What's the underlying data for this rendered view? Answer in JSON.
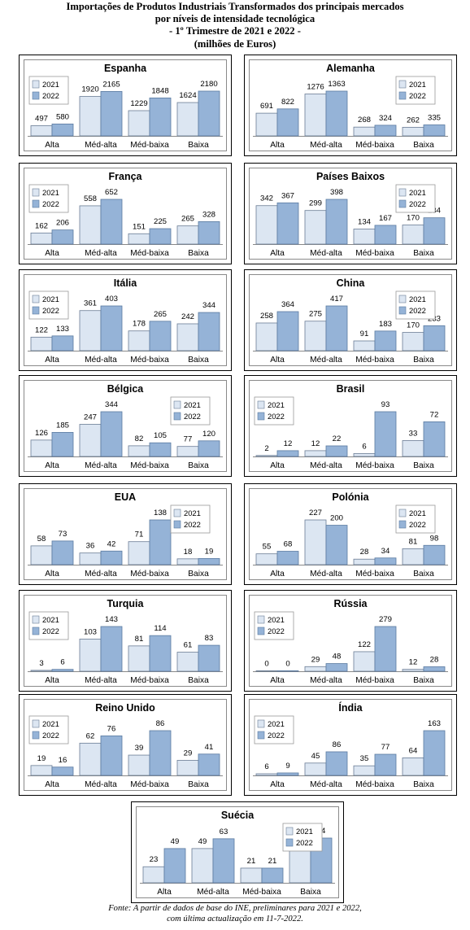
{
  "title": {
    "line1": "Importações de Produtos Industriais Transformados dos principais mercados",
    "line2": "por níveis de intensidade tecnológica",
    "line3": "- 1º Trimestre de 2021 e 2022 -",
    "line4": "(milhões de Euros)"
  },
  "source": {
    "line1": "Fonte: A partir de dados de base do INE, preliminares para 2021 e 2022,",
    "line2": "com última actualização em 11-7-2022."
  },
  "colors": {
    "s2021": "#dce6f2",
    "s2022": "#95b3d7",
    "border2021": "#6b7d95",
    "border2022": "#5a7aa0"
  },
  "chart_data": [
    {
      "type": "bar",
      "title": "Espanha",
      "categories": [
        "Alta",
        "Méd-alta",
        "Méd-baixa",
        "Baixa"
      ],
      "series": [
        {
          "name": "2021",
          "values": [
            497,
            1920,
            1229,
            1624
          ]
        },
        {
          "name": "2022",
          "values": [
            580,
            2165,
            1848,
            2180
          ]
        }
      ],
      "legend": "left"
    },
    {
      "type": "bar",
      "title": "Alemanha",
      "categories": [
        "Alta",
        "Méd-alta",
        "Méd-baixa",
        "Baixa"
      ],
      "series": [
        {
          "name": "2021",
          "values": [
            691,
            1276,
            268,
            262
          ]
        },
        {
          "name": "2022",
          "values": [
            822,
            1363,
            324,
            335
          ]
        }
      ],
      "legend": "right"
    },
    {
      "type": "bar",
      "title": "França",
      "categories": [
        "Alta",
        "Méd-alta",
        "Méd-baixa",
        "Baixa"
      ],
      "series": [
        {
          "name": "2021",
          "values": [
            162,
            558,
            151,
            265
          ]
        },
        {
          "name": "2022",
          "values": [
            206,
            652,
            225,
            328
          ]
        }
      ],
      "legend": "left"
    },
    {
      "type": "bar",
      "title": "Países Baixos",
      "categories": [
        "Alta",
        "Méd-alta",
        "Méd-baixa",
        "Baixa"
      ],
      "series": [
        {
          "name": "2021",
          "values": [
            342,
            299,
            134,
            170
          ]
        },
        {
          "name": "2022",
          "values": [
            367,
            398,
            167,
            234
          ]
        }
      ],
      "legend": "right"
    },
    {
      "type": "bar",
      "title": "Itália",
      "categories": [
        "Alta",
        "Méd-alta",
        "Méd-baixa",
        "Baixa"
      ],
      "series": [
        {
          "name": "2021",
          "values": [
            122,
            361,
            178,
            242
          ]
        },
        {
          "name": "2022",
          "values": [
            133,
            403,
            265,
            344
          ]
        }
      ],
      "legend": "left"
    },
    {
      "type": "bar",
      "title": "China",
      "categories": [
        "Alta",
        "Méd-alta",
        "Méd-baixa",
        "Baixa"
      ],
      "series": [
        {
          "name": "2021",
          "values": [
            258,
            275,
            91,
            170
          ]
        },
        {
          "name": "2022",
          "values": [
            364,
            417,
            183,
            233
          ]
        }
      ],
      "legend": "right"
    },
    {
      "type": "bar",
      "title": "Bélgica",
      "categories": [
        "Alta",
        "Méd-alta",
        "Méd-baixa",
        "Baixa"
      ],
      "series": [
        {
          "name": "2021",
          "values": [
            126,
            247,
            82,
            77
          ]
        },
        {
          "name": "2022",
          "values": [
            185,
            344,
            105,
            120
          ]
        }
      ],
      "legend": "right"
    },
    {
      "type": "bar",
      "title": "Brasil",
      "categories": [
        "Alta",
        "Méd-alta",
        "Méd-baixa",
        "Baixa"
      ],
      "series": [
        {
          "name": "2021",
          "values": [
            2,
            12,
            6,
            33
          ]
        },
        {
          "name": "2022",
          "values": [
            12,
            22,
            93,
            72
          ]
        }
      ],
      "legend": "left"
    },
    {
      "type": "bar",
      "title": "EUA",
      "categories": [
        "Alta",
        "Méd-alta",
        "Méd-baixa",
        "Baixa"
      ],
      "series": [
        {
          "name": "2021",
          "values": [
            58,
            36,
            71,
            18
          ]
        },
        {
          "name": "2022",
          "values": [
            73,
            42,
            138,
            19
          ]
        }
      ],
      "legend": "right"
    },
    {
      "type": "bar",
      "title": "Polónia",
      "categories": [
        "Alta",
        "Méd-alta",
        "Méd-baixa",
        "Baixa"
      ],
      "series": [
        {
          "name": "2021",
          "values": [
            55,
            227,
            28,
            81
          ]
        },
        {
          "name": "2022",
          "values": [
            68,
            200,
            34,
            98
          ]
        }
      ],
      "legend": "right"
    },
    {
      "type": "bar",
      "title": "Turquia",
      "categories": [
        "Alta",
        "Méd-alta",
        "Méd-baixa",
        "Baixa"
      ],
      "series": [
        {
          "name": "2021",
          "values": [
            3,
            103,
            81,
            61
          ]
        },
        {
          "name": "2022",
          "values": [
            6,
            143,
            114,
            83
          ]
        }
      ],
      "legend": "left"
    },
    {
      "type": "bar",
      "title": "Rússia",
      "categories": [
        "Alta",
        "Méd-alta",
        "Méd-baixa",
        "Baixa"
      ],
      "series": [
        {
          "name": "2021",
          "values": [
            0,
            29,
            122,
            12
          ]
        },
        {
          "name": "2022",
          "values": [
            0,
            48,
            279,
            28
          ]
        }
      ],
      "legend": "left"
    },
    {
      "type": "bar",
      "title": "Reino Unido",
      "categories": [
        "Alta",
        "Méd-alta",
        "Méd-baixa",
        "Baixa"
      ],
      "series": [
        {
          "name": "2021",
          "values": [
            19,
            62,
            39,
            29
          ]
        },
        {
          "name": "2022",
          "values": [
            16,
            76,
            86,
            41
          ]
        }
      ],
      "legend": "left"
    },
    {
      "type": "bar",
      "title": "Índia",
      "categories": [
        "Alta",
        "Méd-alta",
        "Méd-baixa",
        "Baixa"
      ],
      "series": [
        {
          "name": "2021",
          "values": [
            6,
            45,
            35,
            64
          ]
        },
        {
          "name": "2022",
          "values": [
            9,
            86,
            77,
            163
          ]
        }
      ],
      "legend": "left"
    },
    {
      "type": "bar",
      "title": "Suécia",
      "categories": [
        "Alta",
        "Méd-alta",
        "Méd-baixa",
        "Baixa"
      ],
      "series": [
        {
          "name": "2021",
          "values": [
            23,
            49,
            21,
            53
          ]
        },
        {
          "name": "2022",
          "values": [
            49,
            63,
            21,
            64
          ]
        }
      ],
      "legend": "right"
    }
  ]
}
